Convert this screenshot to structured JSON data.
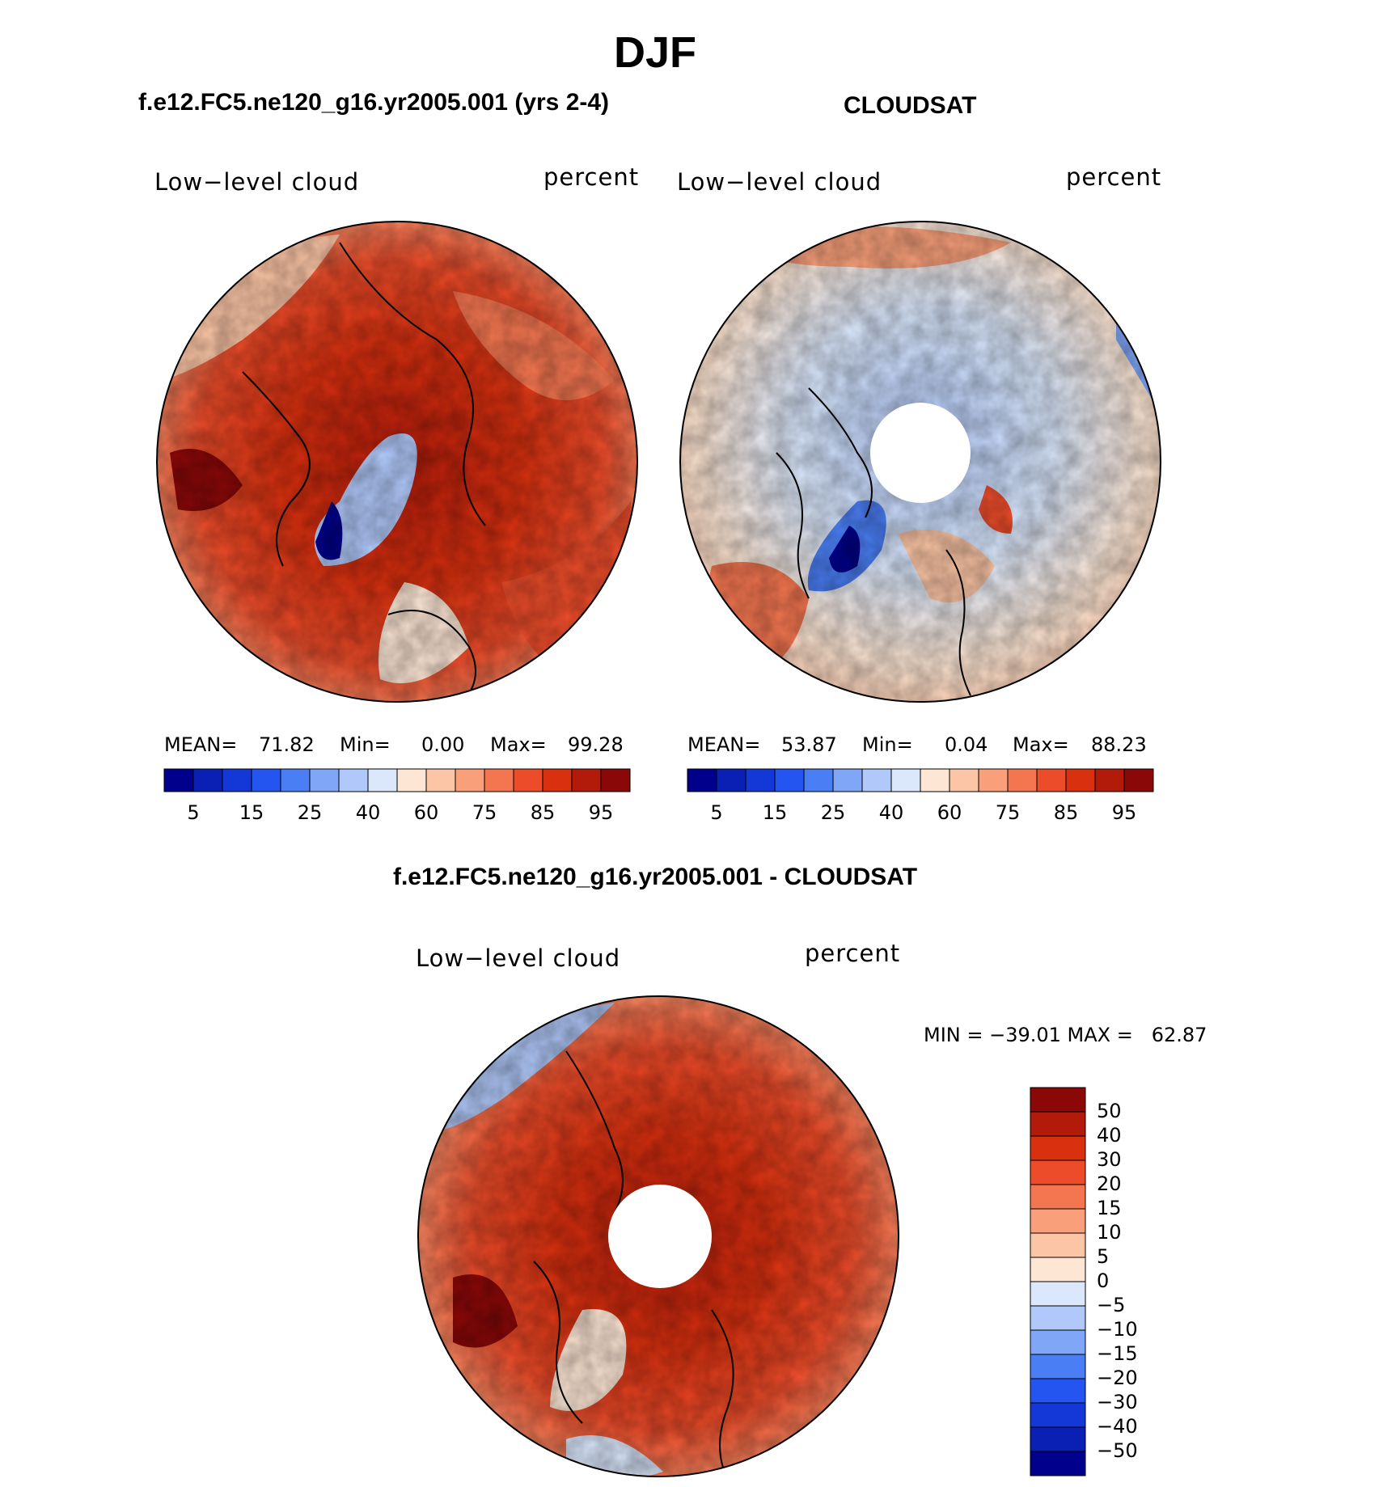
{
  "figure": {
    "title": "DJF"
  },
  "panels": {
    "model": {
      "subtitle": "f.e12.FC5.ne120_g16.yr2005.001 (yrs 2-4)",
      "variable": "Low−level cloud",
      "units": "percent",
      "mean_label": "MEAN=",
      "mean": "71.82",
      "min_label": "Min=",
      "min": "0.00",
      "max_label": "Max=",
      "max": "99.28"
    },
    "obs": {
      "subtitle": "CLOUDSAT",
      "variable": "Low−level cloud",
      "units": "percent",
      "mean_label": "MEAN=",
      "mean": "53.87",
      "min_label": "Min=",
      "min": "0.04",
      "max_label": "Max=",
      "max": "88.23"
    },
    "diff": {
      "subtitle": "f.e12.FC5.ne120_g16.yr2005.001 - CLOUDSAT",
      "variable": "Low−level cloud",
      "units": "percent",
      "minmax_text": "MIN = −39.01 MAX =   62.87"
    }
  },
  "colorbar_abs": {
    "labels": [
      "5",
      "15",
      "25",
      "40",
      "60",
      "75",
      "85",
      "95"
    ],
    "colors": [
      "#00008c",
      "#0a1fb4",
      "#1438d8",
      "#2455f0",
      "#4a7ef5",
      "#7fa6f7",
      "#b1c9fa",
      "#dbe8fc",
      "#fde6d4",
      "#fcc5a5",
      "#f9a07a",
      "#f47650",
      "#ec4c2a",
      "#d9300f",
      "#b21b0a",
      "#8a0808"
    ]
  },
  "colorbar_diff": {
    "labels": [
      "50",
      "40",
      "30",
      "20",
      "15",
      "10",
      "5",
      "0",
      "−5",
      "−10",
      "−15",
      "−20",
      "−30",
      "−40",
      "−50"
    ],
    "colors": [
      "#8a0808",
      "#b21b0a",
      "#d9300f",
      "#ec4c2a",
      "#f47650",
      "#f9a07a",
      "#fcc5a5",
      "#fde6d4",
      "#dbe8fc",
      "#b1c9fa",
      "#7fa6f7",
      "#4a7ef5",
      "#2455f0",
      "#1438d8",
      "#0a1fb4",
      "#00008c"
    ]
  }
}
